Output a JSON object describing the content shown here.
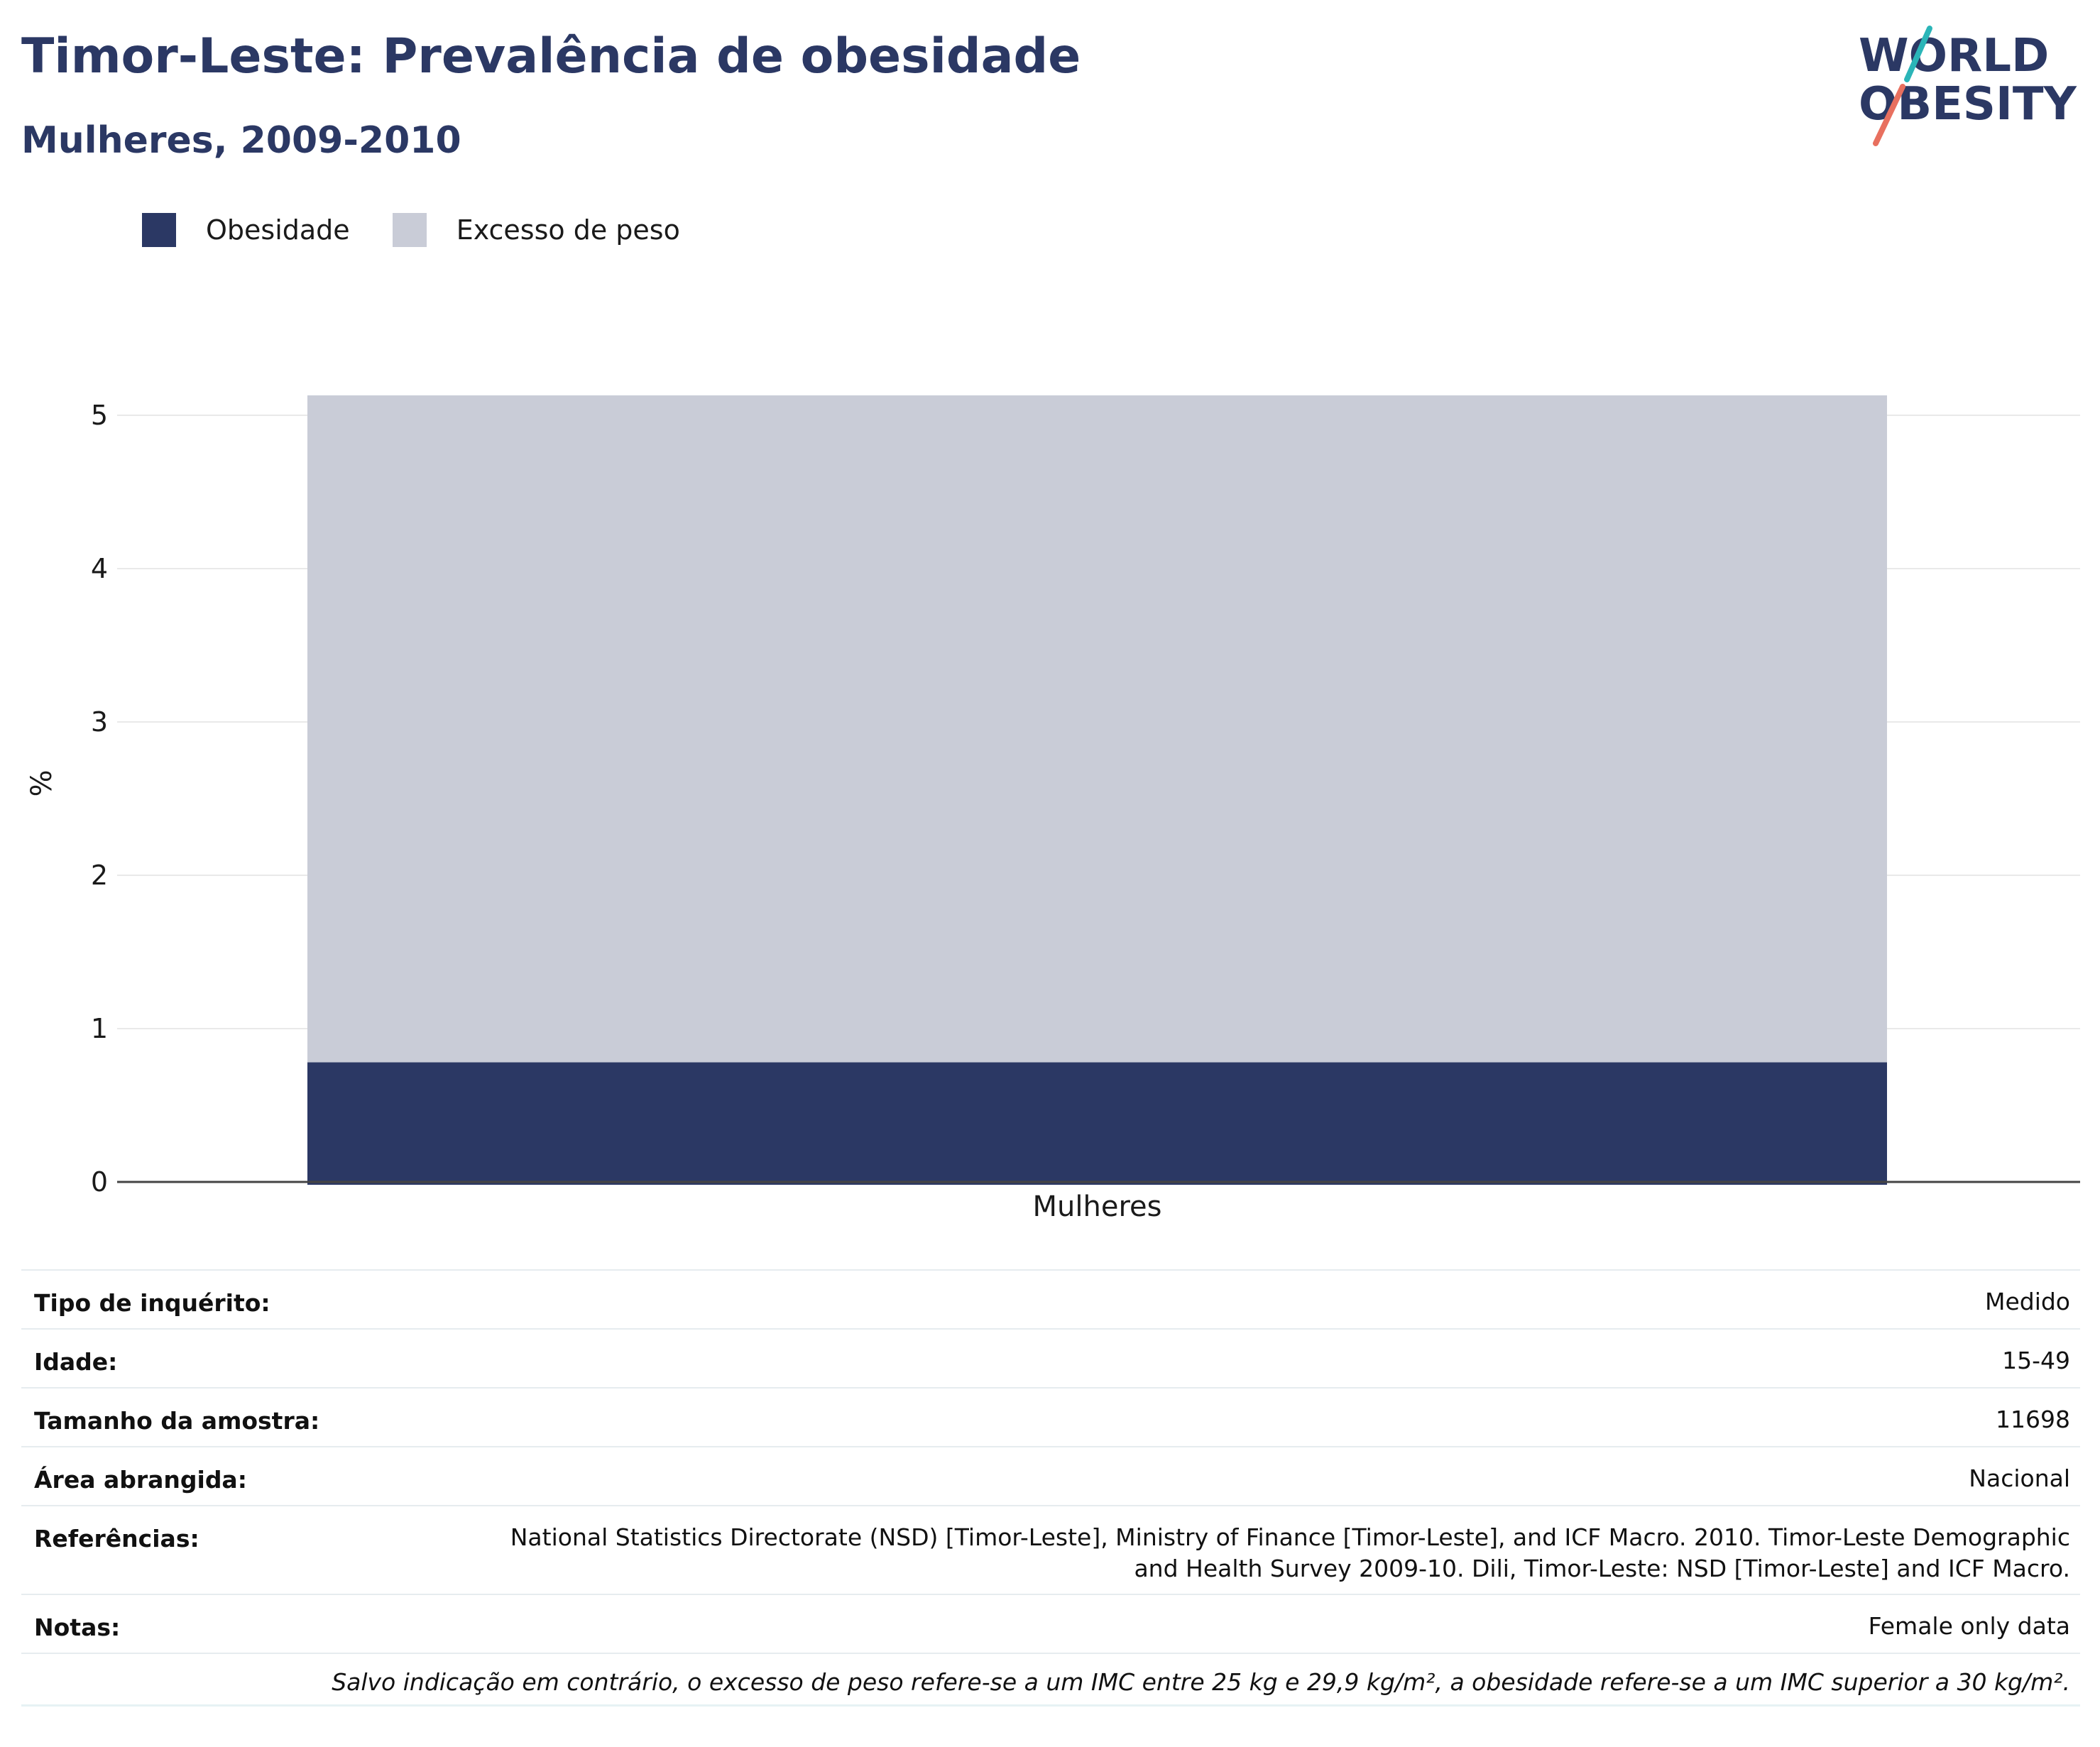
{
  "header": {
    "title": "Timor-Leste: Prevalência de obesidade",
    "subtitle": "Mulheres, 2009-2010"
  },
  "logo": {
    "line1": "WORLD",
    "line2": "OBESITY"
  },
  "legend": [
    {
      "label": "Obesidade",
      "color": "#2b3864"
    },
    {
      "label": "Excesso de peso",
      "color": "#c9ccd7"
    }
  ],
  "chart_data": {
    "type": "bar",
    "stacked": true,
    "categories": [
      "Mulheres"
    ],
    "series": [
      {
        "name": "Obesidade",
        "values": [
          0.78
        ],
        "color": "#2b3864"
      },
      {
        "name": "Excesso de peso",
        "values": [
          4.35
        ],
        "color": "#c9ccd7"
      }
    ],
    "ylabel": "%",
    "xlabel": "",
    "ylim": [
      0,
      5.2
    ],
    "yticks": [
      0,
      1,
      2,
      3,
      4,
      5
    ],
    "grid": true,
    "legend_position": "top-left"
  },
  "info_table": [
    {
      "label": "Tipo de inquérito:",
      "value": "Medido"
    },
    {
      "label": "Idade:",
      "value": "15-49"
    },
    {
      "label": "Tamanho da amostra:",
      "value": "11698"
    },
    {
      "label": "Área abrangida:",
      "value": "Nacional"
    },
    {
      "label": "Referências:",
      "value": "National Statistics Directorate (NSD) [Timor-Leste], Ministry of Finance [Timor-Leste], and ICF Macro. 2010. Timor-Leste Demographic and Health Survey 2009-10. Dili, Timor-Leste: NSD [Timor-Leste] and ICF Macro."
    },
    {
      "label": "Notas:",
      "value": "Female only data"
    }
  ],
  "footnote": "Salvo indicação em contrário, o excesso de peso refere-se a um IMC entre 25 kg e 29,9 kg/m², a obesidade refere-se a um IMC superior a 30 kg/m²."
}
